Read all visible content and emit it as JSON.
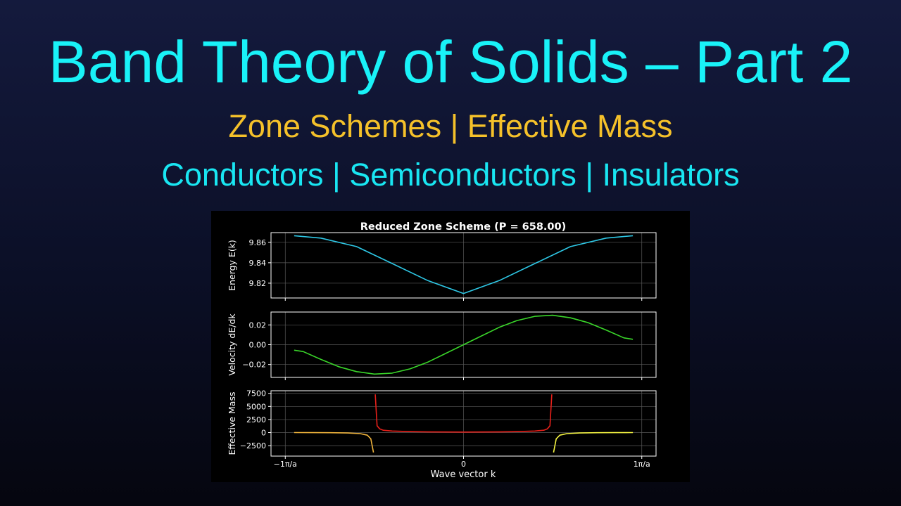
{
  "slide": {
    "title": "Band Theory of Solids – Part 2",
    "subtitle_1": "Zone Schemes | Effective Mass",
    "subtitle_2": "Conductors | Semiconductors | Insulators"
  },
  "colors": {
    "title": "#19f2f8",
    "subtitle_1": "#f5c12a",
    "subtitle_2": "#19e6f2",
    "energy": "#2ec8e6",
    "velocity": "#3ad62a",
    "mass_center": "#e8201a",
    "mass_outer": "#f0b43c",
    "mass_outer_right": "#f5f542"
  },
  "chart_data": {
    "type": "line",
    "title": "Reduced Zone Scheme (P = 658.00)",
    "xlabel": "Wave vector k",
    "x_ticks": [
      "−1π/a",
      "0",
      "1π/a"
    ],
    "x_range_in_pi_over_a": [
      -1.08,
      1.08
    ],
    "grid": true,
    "panels": [
      {
        "name": "energy",
        "ylabel": "Energy E(k)",
        "ylim": [
          9.8055,
          9.8695
        ],
        "y_ticks": [
          9.82,
          9.84,
          9.86
        ],
        "y_tick_labels": [
          "9.82",
          "9.84",
          "9.86"
        ],
        "series": [
          {
            "x": [
              -0.95,
              -0.8,
              -0.6,
              -0.4,
              -0.2,
              0,
              0.2,
              0.4,
              0.6,
              0.8,
              0.95
            ],
            "y": [
              9.8665,
              9.8641,
              9.8558,
              9.8392,
              9.8225,
              9.8099,
              9.8225,
              9.8392,
              9.8558,
              9.8641,
              9.8665
            ]
          }
        ]
      },
      {
        "name": "velocity",
        "ylabel": "Velocity dE/dk",
        "ylim": [
          -0.033,
          0.033
        ],
        "y_ticks": [
          -0.02,
          0.0,
          0.02
        ],
        "y_tick_labels": [
          "−0.02",
          "0.00",
          "0.02"
        ],
        "series": [
          {
            "x": [
              -0.95,
              -0.9,
              -0.8,
              -0.7,
              -0.6,
              -0.5,
              -0.4,
              -0.3,
              -0.2,
              -0.1,
              0,
              0.1,
              0.2,
              0.3,
              0.4,
              0.5,
              0.6,
              0.7,
              0.8,
              0.9,
              0.95
            ],
            "y": [
              -0.0055,
              -0.0069,
              -0.0148,
              -0.0222,
              -0.0272,
              -0.0297,
              -0.0287,
              -0.0244,
              -0.0175,
              -0.0088,
              0.0,
              0.0088,
              0.0175,
              0.0244,
              0.0287,
              0.0297,
              0.0272,
              0.0222,
              0.0148,
              0.0069,
              0.0055
            ]
          }
        ]
      },
      {
        "name": "effective-mass",
        "ylabel": "Effective Mass",
        "ylim": [
          -4500,
          8000
        ],
        "y_ticks": [
          -2500,
          0,
          2500,
          5000,
          7500
        ],
        "y_tick_labels": [
          "−2500",
          "0",
          "2500",
          "5000",
          "7500"
        ],
        "series": [
          {
            "x": [
              -0.95,
              -0.85,
              -0.75,
              -0.65,
              -0.58,
              -0.54,
              -0.52,
              -0.505
            ],
            "y": [
              0,
              -10,
              -30,
              -80,
              -200,
              -500,
              -1200,
              -3800
            ]
          },
          {
            "x": [
              -0.495,
              -0.485,
              -0.47,
              -0.45,
              -0.4,
              -0.3,
              -0.2,
              0,
              0.2,
              0.3,
              0.4,
              0.45,
              0.47,
              0.485,
              0.495
            ],
            "y": [
              7300,
              1300,
              700,
              450,
              300,
              180,
              130,
              100,
              130,
              180,
              300,
              450,
              700,
              1300,
              7300
            ]
          },
          {
            "x": [
              0.505,
              0.52,
              0.54,
              0.58,
              0.65,
              0.75,
              0.85,
              0.95
            ],
            "y": [
              -3800,
              -1200,
              -500,
              -200,
              -80,
              -30,
              -10,
              0
            ]
          }
        ]
      }
    ]
  }
}
